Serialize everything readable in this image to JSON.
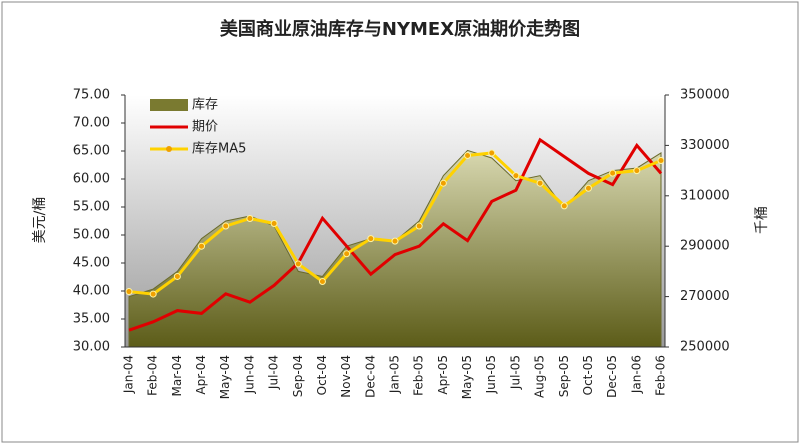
{
  "chart_data": {
    "type": "area-line",
    "title": "美国商业原油库存与NYMEX原油期价走势图",
    "ylabel": "美元/桶",
    "y2label": "千桶",
    "categories": [
      "Jan-04",
      "Feb-04",
      "Mar-04",
      "Apr-04",
      "May-04",
      "Jun-04",
      "Jul-04",
      "Sep-04",
      "Oct-04",
      "Nov-04",
      "Dec-04",
      "Jan-05",
      "Feb-05",
      "Apr-05",
      "May-05",
      "Jun-05",
      "Jul-05",
      "Aug-05",
      "Sep-05",
      "Oct-05",
      "Dec-05",
      "Jan-06",
      "Feb-06"
    ],
    "series": [
      {
        "name": "库存",
        "type": "area",
        "axis": "y2",
        "color": "#7a7a30",
        "values": [
          270000,
          273000,
          280000,
          293000,
          300000,
          302000,
          298000,
          280000,
          278000,
          290000,
          293000,
          292000,
          300000,
          318000,
          328000,
          325000,
          316000,
          318000,
          305000,
          316000,
          320000,
          321000,
          327000
        ]
      },
      {
        "name": "期价",
        "type": "line",
        "axis": "y",
        "color": "#e00000",
        "values": [
          33,
          34.5,
          36.5,
          36,
          39.5,
          38,
          41,
          45,
          53,
          48,
          43,
          46.5,
          48,
          52,
          49,
          56,
          58,
          67,
          64,
          61,
          59,
          66,
          61
        ]
      },
      {
        "name": "库存MA5",
        "type": "line-marker",
        "axis": "y2",
        "color": "#ffd200",
        "values": [
          272000,
          271000,
          278000,
          290000,
          298000,
          301000,
          299000,
          283000,
          276000,
          287000,
          293000,
          292000,
          298000,
          315000,
          326000,
          327000,
          318000,
          315000,
          306000,
          313000,
          319000,
          320000,
          324000
        ]
      }
    ],
    "ylim": [
      30,
      75
    ],
    "yticks": [
      {
        "value": 30,
        "label": "30.00"
      },
      {
        "value": 35,
        "label": "35.00"
      },
      {
        "value": 40,
        "label": "40.00"
      },
      {
        "value": 45,
        "label": "45.00"
      },
      {
        "value": 50,
        "label": "50.00"
      },
      {
        "value": 55,
        "label": "55.00"
      },
      {
        "value": 60,
        "label": "60.00"
      },
      {
        "value": 65,
        "label": "65.00"
      },
      {
        "value": 70,
        "label": "70.00"
      },
      {
        "value": 75,
        "label": "75.00"
      }
    ],
    "y2lim": [
      250000,
      350000
    ],
    "y2ticks": [
      250000,
      270000,
      290000,
      310000,
      330000,
      350000
    ]
  }
}
